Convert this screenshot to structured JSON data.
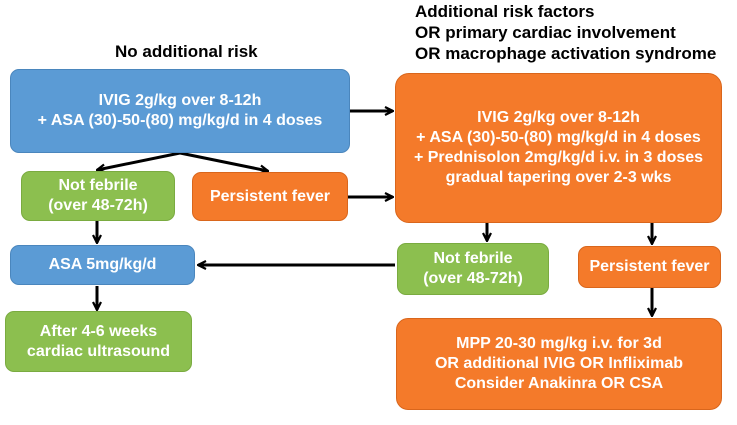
{
  "headings": {
    "no_risk": "No additional risk",
    "risk_lines": [
      "Additional risk factors",
      "OR primary cardiac involvement",
      "OR macrophage activation syndrome"
    ]
  },
  "boxes": {
    "ivig_standard": [
      "IVIG 2g/kg over 8-12h",
      "+ ASA (30)-50-(80) mg/kg/d in 4 doses"
    ],
    "not_febrile_left": [
      "Not febrile",
      "(over 48-72h)"
    ],
    "persistent_fever_left": [
      "Persistent fever"
    ],
    "asa_low": [
      "ASA 5mg/kg/d"
    ],
    "cardiac_ultrasound": [
      "After 4-6 weeks",
      "cardiac ultrasound"
    ],
    "ivig_intensified": [
      "IVIG 2g/kg over 8-12h",
      "+ ASA (30)-50-(80) mg/kg/d in 4 doses",
      "+ Prednisolon 2mg/kg/d i.v. in 3 doses",
      "gradual tapering over 2-3 wks"
    ],
    "not_febrile_right": [
      "Not febrile",
      "(over 48-72h)"
    ],
    "persistent_fever_right": [
      "Persistent fever"
    ],
    "mpp": [
      "MPP 20-30 mg/kg i.v. for 3d",
      "OR additional IVIG OR Infliximab",
      "Consider Anakinra OR CSA"
    ]
  },
  "colors": {
    "blue": "#5b9bd5",
    "green": "#8cbf4f",
    "orange": "#f47a2a",
    "arrow": "#000000"
  }
}
